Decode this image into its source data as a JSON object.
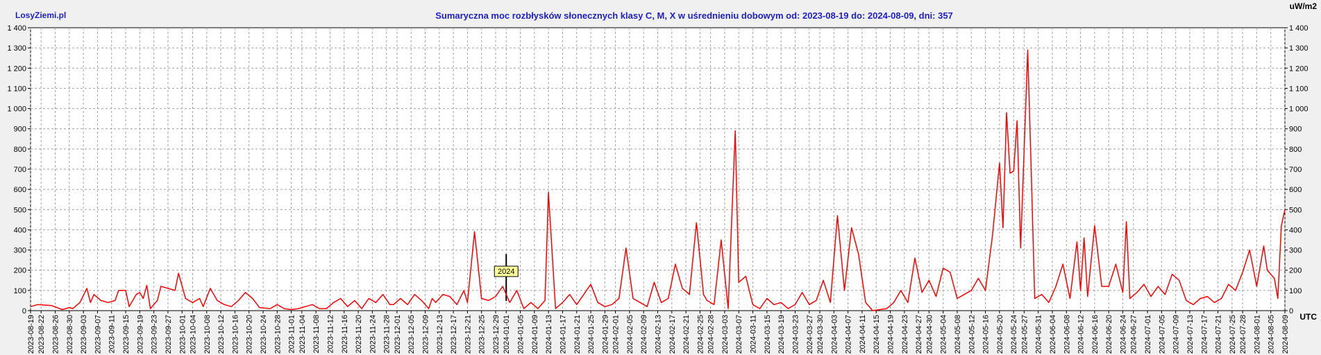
{
  "header": {
    "brand": "LosyZiemi.pl",
    "title": "Sumaryczna moc rozbłysków słonecznych klasy C, M, X w uśrednieniu dobowym od: 2023-08-19 do: 2024-08-09, dni: 357",
    "unit_label": "uW/m2",
    "timezone_label": "UTC"
  },
  "chart_data": {
    "type": "line",
    "title": "Sumaryczna moc rozbłysków słonecznych klasy C, M, X w uśrednieniu dobowym od: 2023-08-19 do: 2024-08-09, dni: 357",
    "xlabel": "UTC",
    "ylabel": "uW/m2",
    "ylim": [
      0,
      1400
    ],
    "x_range": [
      "2023-08-19",
      "2024-08-09"
    ],
    "grid": true,
    "line_color": "#ff0000",
    "y_ticks": [
      "0",
      "100",
      "200",
      "300",
      "400",
      "500",
      "600",
      "700",
      "800",
      "900",
      "1 000",
      "1 100",
      "1 200",
      "1 300",
      "1 400"
    ],
    "x_ticks": [
      "2023-08-19",
      "2023-08-22",
      "2023-08-26",
      "2023-08-30",
      "2023-09-03",
      "2023-09-07",
      "2023-09-11",
      "2023-09-15",
      "2023-09-19",
      "2023-09-23",
      "2023-09-27",
      "2023-10-01",
      "2023-10-04",
      "2023-10-08",
      "2023-10-12",
      "2023-10-16",
      "2023-10-20",
      "2023-10-24",
      "2023-10-28",
      "2023-11-01",
      "2023-11-04",
      "2023-11-08",
      "2023-11-12",
      "2023-11-16",
      "2023-11-20",
      "2023-11-24",
      "2023-11-28",
      "2023-12-01",
      "2023-12-05",
      "2023-12-09",
      "2023-12-13",
      "2023-12-17",
      "2023-12-21",
      "2023-12-25",
      "2023-12-29",
      "2024-01-01",
      "2024-01-05",
      "2024-01-09",
      "2024-01-13",
      "2024-01-17",
      "2024-01-21",
      "2024-01-25",
      "2024-01-29",
      "2024-02-01",
      "2024-02-05",
      "2024-02-09",
      "2024-02-13",
      "2024-02-17",
      "2024-02-21",
      "2024-02-25",
      "2024-02-28",
      "2024-03-03",
      "2024-03-07",
      "2024-03-11",
      "2024-03-15",
      "2024-03-19",
      "2024-03-23",
      "2024-03-27",
      "2024-03-30",
      "2024-04-03",
      "2024-04-07",
      "2024-04-11",
      "2024-04-15",
      "2024-04-19",
      "2024-04-23",
      "2024-04-27",
      "2024-04-30",
      "2024-05-04",
      "2024-05-08",
      "2024-05-12",
      "2024-05-16",
      "2024-05-20",
      "2024-05-24",
      "2024-05-27",
      "2024-05-31",
      "2024-06-04",
      "2024-06-08",
      "2024-06-12",
      "2024-06-16",
      "2024-06-20",
      "2024-06-24",
      "2024-06-27",
      "2024-07-01",
      "2024-07-05",
      "2024-07-09",
      "2024-07-13",
      "2024-07-17",
      "2024-07-21",
      "2024-07-25",
      "2024-07-28",
      "2024-08-01",
      "2024-08-05",
      "2024-08-09"
    ],
    "annotations": [
      {
        "label": "2024",
        "x": "2024-01-01"
      }
    ],
    "points": [
      [
        "2023-08-19",
        20
      ],
      [
        "2023-08-21",
        30
      ],
      [
        "2023-08-25",
        25
      ],
      [
        "2023-08-28",
        5
      ],
      [
        "2023-08-30",
        15
      ],
      [
        "2023-08-31",
        10
      ],
      [
        "2023-09-02",
        40
      ],
      [
        "2023-09-04",
        110
      ],
      [
        "2023-09-05",
        40
      ],
      [
        "2023-09-06",
        80
      ],
      [
        "2023-09-08",
        50
      ],
      [
        "2023-09-10",
        40
      ],
      [
        "2023-09-12",
        50
      ],
      [
        "2023-09-13",
        100
      ],
      [
        "2023-09-15",
        100
      ],
      [
        "2023-09-16",
        20
      ],
      [
        "2023-09-18",
        80
      ],
      [
        "2023-09-19",
        90
      ],
      [
        "2023-09-20",
        60
      ],
      [
        "2023-09-21",
        125
      ],
      [
        "2023-09-22",
        10
      ],
      [
        "2023-09-24",
        50
      ],
      [
        "2023-09-25",
        120
      ],
      [
        "2023-09-27",
        110
      ],
      [
        "2023-09-29",
        100
      ],
      [
        "2023-09-30",
        185
      ],
      [
        "2023-10-02",
        60
      ],
      [
        "2023-10-04",
        40
      ],
      [
        "2023-10-06",
        60
      ],
      [
        "2023-10-07",
        20
      ],
      [
        "2023-10-09",
        110
      ],
      [
        "2023-10-11",
        50
      ],
      [
        "2023-10-13",
        30
      ],
      [
        "2023-10-15",
        20
      ],
      [
        "2023-10-17",
        50
      ],
      [
        "2023-10-19",
        90
      ],
      [
        "2023-10-21",
        60
      ],
      [
        "2023-10-23",
        15
      ],
      [
        "2023-10-26",
        10
      ],
      [
        "2023-10-28",
        30
      ],
      [
        "2023-10-30",
        10
      ],
      [
        "2023-11-01",
        5
      ],
      [
        "2023-11-03",
        10
      ],
      [
        "2023-11-05",
        20
      ],
      [
        "2023-11-07",
        30
      ],
      [
        "2023-11-09",
        10
      ],
      [
        "2023-11-11",
        10
      ],
      [
        "2023-11-13",
        40
      ],
      [
        "2023-11-15",
        60
      ],
      [
        "2023-11-17",
        20
      ],
      [
        "2023-11-19",
        50
      ],
      [
        "2023-11-21",
        10
      ],
      [
        "2023-11-23",
        60
      ],
      [
        "2023-11-25",
        40
      ],
      [
        "2023-11-27",
        80
      ],
      [
        "2023-11-29",
        30
      ],
      [
        "2023-11-30",
        30
      ],
      [
        "2023-12-02",
        60
      ],
      [
        "2023-12-04",
        30
      ],
      [
        "2023-12-06",
        80
      ],
      [
        "2023-12-08",
        50
      ],
      [
        "2023-12-10",
        10
      ],
      [
        "2023-12-11",
        60
      ],
      [
        "2023-12-12",
        40
      ],
      [
        "2023-12-14",
        80
      ],
      [
        "2023-12-16",
        70
      ],
      [
        "2023-12-18",
        30
      ],
      [
        "2023-12-20",
        100
      ],
      [
        "2023-12-21",
        40
      ],
      [
        "2023-12-23",
        390
      ],
      [
        "2023-12-25",
        60
      ],
      [
        "2023-12-27",
        50
      ],
      [
        "2023-12-29",
        70
      ],
      [
        "2023-12-31",
        120
      ],
      [
        "2024-01-02",
        40
      ],
      [
        "2024-01-04",
        100
      ],
      [
        "2024-01-06",
        10
      ],
      [
        "2024-01-08",
        40
      ],
      [
        "2024-01-10",
        10
      ],
      [
        "2024-01-12",
        50
      ],
      [
        "2024-01-13",
        585
      ],
      [
        "2024-01-15",
        10
      ],
      [
        "2024-01-17",
        40
      ],
      [
        "2024-01-19",
        80
      ],
      [
        "2024-01-21",
        30
      ],
      [
        "2024-01-23",
        80
      ],
      [
        "2024-01-25",
        130
      ],
      [
        "2024-01-27",
        40
      ],
      [
        "2024-01-29",
        20
      ],
      [
        "2024-01-31",
        30
      ],
      [
        "2024-02-02",
        60
      ],
      [
        "2024-02-04",
        310
      ],
      [
        "2024-02-06",
        60
      ],
      [
        "2024-02-08",
        40
      ],
      [
        "2024-02-10",
        20
      ],
      [
        "2024-02-12",
        140
      ],
      [
        "2024-02-14",
        40
      ],
      [
        "2024-02-16",
        60
      ],
      [
        "2024-02-18",
        230
      ],
      [
        "2024-02-20",
        110
      ],
      [
        "2024-02-22",
        80
      ],
      [
        "2024-02-24",
        435
      ],
      [
        "2024-02-26",
        80
      ],
      [
        "2024-02-27",
        50
      ],
      [
        "2024-02-29",
        30
      ],
      [
        "2024-03-02",
        350
      ],
      [
        "2024-03-04",
        10
      ],
      [
        "2024-03-06",
        890
      ],
      [
        "2024-03-07",
        140
      ],
      [
        "2024-03-09",
        170
      ],
      [
        "2024-03-11",
        30
      ],
      [
        "2024-03-13",
        10
      ],
      [
        "2024-03-15",
        60
      ],
      [
        "2024-03-17",
        30
      ],
      [
        "2024-03-19",
        40
      ],
      [
        "2024-03-21",
        10
      ],
      [
        "2024-03-23",
        30
      ],
      [
        "2024-03-25",
        90
      ],
      [
        "2024-03-27",
        30
      ],
      [
        "2024-03-29",
        50
      ],
      [
        "2024-03-31",
        150
      ],
      [
        "2024-04-02",
        40
      ],
      [
        "2024-04-04",
        470
      ],
      [
        "2024-04-06",
        100
      ],
      [
        "2024-04-08",
        410
      ],
      [
        "2024-04-10",
        280
      ],
      [
        "2024-04-12",
        40
      ],
      [
        "2024-04-14",
        0
      ],
      [
        "2024-04-16",
        5
      ],
      [
        "2024-04-18",
        10
      ],
      [
        "2024-04-20",
        40
      ],
      [
        "2024-04-22",
        100
      ],
      [
        "2024-04-24",
        40
      ],
      [
        "2024-04-26",
        260
      ],
      [
        "2024-04-28",
        90
      ],
      [
        "2024-04-30",
        150
      ],
      [
        "2024-05-02",
        70
      ],
      [
        "2024-05-04",
        210
      ],
      [
        "2024-05-06",
        190
      ],
      [
        "2024-05-08",
        60
      ],
      [
        "2024-05-10",
        80
      ],
      [
        "2024-05-12",
        100
      ],
      [
        "2024-05-14",
        160
      ],
      [
        "2024-05-16",
        100
      ],
      [
        "2024-05-18",
        370
      ],
      [
        "2024-05-20",
        730
      ],
      [
        "2024-05-21",
        410
      ],
      [
        "2024-05-22",
        980
      ],
      [
        "2024-05-23",
        680
      ],
      [
        "2024-05-24",
        690
      ],
      [
        "2024-05-25",
        940
      ],
      [
        "2024-05-26",
        310
      ],
      [
        "2024-05-28",
        1290
      ],
      [
        "2024-05-29",
        700
      ],
      [
        "2024-05-30",
        60
      ],
      [
        "2024-06-01",
        80
      ],
      [
        "2024-06-03",
        40
      ],
      [
        "2024-06-05",
        120
      ],
      [
        "2024-06-07",
        230
      ],
      [
        "2024-06-09",
        60
      ],
      [
        "2024-06-11",
        340
      ],
      [
        "2024-06-12",
        100
      ],
      [
        "2024-06-13",
        360
      ],
      [
        "2024-06-14",
        70
      ],
      [
        "2024-06-16",
        420
      ],
      [
        "2024-06-18",
        120
      ],
      [
        "2024-06-20",
        120
      ],
      [
        "2024-06-22",
        230
      ],
      [
        "2024-06-24",
        90
      ],
      [
        "2024-06-25",
        440
      ],
      [
        "2024-06-26",
        60
      ],
      [
        "2024-06-28",
        90
      ],
      [
        "2024-06-30",
        130
      ],
      [
        "2024-07-02",
        70
      ],
      [
        "2024-07-04",
        120
      ],
      [
        "2024-07-06",
        80
      ],
      [
        "2024-07-08",
        180
      ],
      [
        "2024-07-10",
        150
      ],
      [
        "2024-07-12",
        50
      ],
      [
        "2024-07-14",
        30
      ],
      [
        "2024-07-16",
        60
      ],
      [
        "2024-07-18",
        70
      ],
      [
        "2024-07-20",
        40
      ],
      [
        "2024-07-22",
        60
      ],
      [
        "2024-07-24",
        130
      ],
      [
        "2024-07-26",
        100
      ],
      [
        "2024-07-28",
        190
      ],
      [
        "2024-07-30",
        300
      ],
      [
        "2024-08-01",
        120
      ],
      [
        "2024-08-03",
        320
      ],
      [
        "2024-08-04",
        200
      ],
      [
        "2024-08-06",
        160
      ],
      [
        "2024-08-07",
        60
      ],
      [
        "2024-08-08",
        420
      ],
      [
        "2024-08-09",
        500
      ]
    ]
  }
}
